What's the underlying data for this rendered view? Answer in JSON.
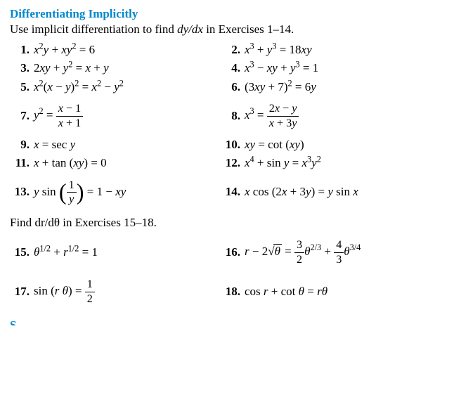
{
  "section_title": "Differentiating Implicitly",
  "instruction_pre": "Use implicit differentiation to find ",
  "instruction_var": "dy/dx",
  "instruction_post": " in Exercises 1–14.",
  "sub_instruction_pre": "Find ",
  "sub_instruction_var": "dr/dθ",
  "sub_instruction_post": " in Exercises 15–18.",
  "ex": {
    "n1": "1.",
    "e1": "<i>x</i><sup>2</sup><i>y</i> + <i>xy</i><sup>2</sup> = 6",
    "n2": "2.",
    "e2": "<i>x</i><sup>3</sup> + <i>y</i><sup>3</sup> = 18<i>xy</i>",
    "n3": "3.",
    "e3": "2<i>xy</i> + <i>y</i><sup>2</sup> = <i>x</i> + <i>y</i>",
    "n4": "4.",
    "e4": "<i>x</i><sup>3</sup> − <i>xy</i> + <i>y</i><sup>3</sup> = 1",
    "n5": "5.",
    "e5": "<i>x</i><sup>2</sup>(<i>x</i> − <i>y</i>)<sup>2</sup> = <i>x</i><sup>2</sup> − <i>y</i><sup>2</sup>",
    "n6": "6.",
    "e6": "(3<i>xy</i> + 7)<sup>2</sup> = 6<i>y</i>",
    "n7": "7.",
    "e7": "<i>y</i><sup>2</sup> = <span class=\"frac\"><span class=\"fn\"><i>x</i> − 1</span><span class=\"fd\"><i>x</i> + 1</span></span>",
    "n8": "8.",
    "e8": "<i>x</i><sup>3</sup> = <span class=\"frac\"><span class=\"fn\">2<i>x</i> − <i>y</i></span><span class=\"fd\"><i>x</i> + 3<i>y</i></span></span>",
    "n9": "9.",
    "e9": "<i>x</i> = sec <i>y</i>",
    "n10": "10.",
    "e10": "<i>xy</i> = cot (<i>xy</i>)",
    "n11": "11.",
    "e11": "<i>x</i> + tan (<i>xy</i>) = 0",
    "n12": "12.",
    "e12": "<i>x</i><sup>4</sup> + sin <i>y</i> = <i>x</i><sup>3</sup><i>y</i><sup>2</sup>",
    "n13": "13.",
    "e13": "<i>y</i> sin <span class=\"bigp\">(</span><span class=\"frac\"><span class=\"fn\">1</span><span class=\"fd\"><i>y</i></span></span><span class=\"bigp\">)</span> = 1 − <i>xy</i>",
    "n14": "14.",
    "e14": "<i>x</i> cos (2<i>x</i> + 3<i>y</i>) = <i>y</i> sin <i>x</i>",
    "n15": "15.",
    "e15": "<i>θ</i><sup>1/2</sup> + <i>r</i><sup>1/2</sup> = 1",
    "n16": "16.",
    "e16": "<i>r</i> − 2<span class=\"sqrt\">√<span class=\"rad\"><i>θ</i></span></span> = <span class=\"frac\"><span class=\"fn\">3</span><span class=\"fd\">2</span></span><i>θ</i><sup>2/3</sup> + <span class=\"frac\"><span class=\"fn\">4</span><span class=\"fd\">3</span></span><i>θ</i><sup>3/4</sup>",
    "n17": "17.",
    "e17": "sin (<i>r θ</i>) = <span class=\"frac\"><span class=\"fn\">1</span><span class=\"fd\">2</span></span>",
    "n18": "18.",
    "e18": "cos <i>r</i> + cot <i>θ</i> = <i>rθ</i>"
  },
  "next_section_stub": "S"
}
